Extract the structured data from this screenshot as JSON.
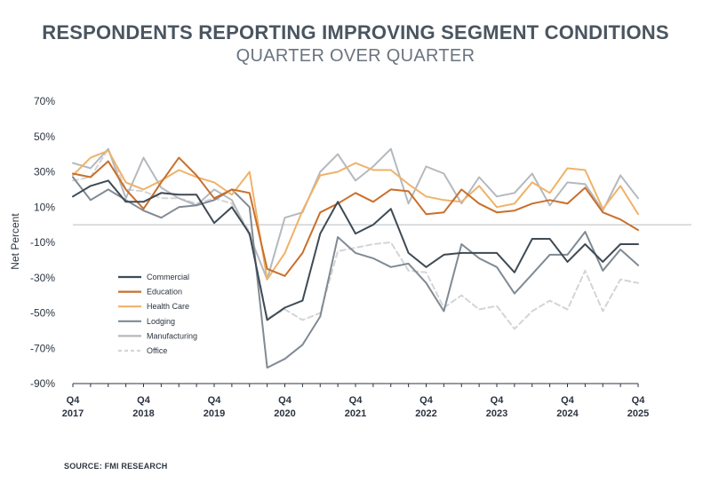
{
  "chart_data": {
    "type": "line",
    "title": "RESPONDENTS REPORTING IMPROVING SEGMENT CONDITIONS",
    "subtitle": "QUARTER OVER QUARTER",
    "ylabel": "Net Percent",
    "xlabel": "",
    "ylim": [
      -90,
      70
    ],
    "yticks": [
      70,
      50,
      30,
      10,
      -10,
      -30,
      -50,
      -70,
      -90
    ],
    "ytick_labels": [
      "70%",
      "50%",
      "30%",
      "10%",
      "-10%",
      "-30%",
      "-50%",
      "-70%",
      "-90%"
    ],
    "x_tick_labels": [
      {
        "q": "Q4",
        "year": "2017"
      },
      {
        "q": "Q4",
        "year": "2018"
      },
      {
        "q": "Q4",
        "year": "2019"
      },
      {
        "q": "Q4",
        "year": "2020"
      },
      {
        "q": "Q4",
        "year": "2021"
      },
      {
        "q": "Q4",
        "year": "2022"
      },
      {
        "q": "Q4",
        "year": "2023"
      },
      {
        "q": "Q4",
        "year": "2024"
      },
      {
        "q": "Q4",
        "year": "2025"
      }
    ],
    "n_points": 33,
    "source": "SOURCE: FMI RESEARCH",
    "series": [
      {
        "name": "Commercial",
        "color": "#3f4a54",
        "dash": "",
        "values": [
          16,
          22,
          25,
          13,
          13,
          18,
          17,
          17,
          1,
          10,
          -5,
          -54,
          -47,
          -43,
          -5,
          13,
          -5,
          0,
          9,
          -16,
          -24,
          -17,
          -16,
          -16,
          -16,
          -27,
          -8,
          -8,
          -21,
          -11,
          -21,
          -11,
          -11
        ]
      },
      {
        "name": "Education",
        "color": "#c96f2c",
        "dash": "",
        "values": [
          29,
          27,
          36,
          20,
          9,
          24,
          38,
          28,
          15,
          20,
          18,
          -25,
          -29,
          -16,
          7,
          12,
          18,
          13,
          20,
          19,
          6,
          7,
          20,
          12,
          7,
          8,
          12,
          14,
          12,
          21,
          7,
          3,
          -3
        ]
      },
      {
        "name": "Health Care",
        "color": "#efb269",
        "dash": "",
        "values": [
          28,
          38,
          42,
          24,
          20,
          25,
          31,
          27,
          24,
          17,
          30,
          -31,
          -16,
          8,
          28,
          30,
          35,
          31,
          31,
          23,
          16,
          14,
          13,
          22,
          10,
          12,
          24,
          18,
          32,
          31,
          9,
          22,
          6
        ]
      },
      {
        "name": "Lodging",
        "color": "#808a93",
        "dash": "",
        "values": [
          27,
          14,
          20,
          14,
          8,
          4,
          10,
          11,
          14,
          20,
          10,
          -81,
          -76,
          -68,
          -52,
          -7,
          -16,
          -19,
          -24,
          -22,
          -33,
          -49,
          -11,
          -19,
          -24,
          -39,
          -28,
          -17,
          -17,
          -4,
          -26,
          -14,
          -23
        ]
      },
      {
        "name": "Manufacturing",
        "color": "#b4b9be",
        "dash": "",
        "values": [
          35,
          32,
          43,
          15,
          38,
          21,
          15,
          11,
          20,
          14,
          -6,
          -31,
          4,
          7,
          30,
          40,
          25,
          33,
          43,
          12,
          33,
          29,
          12,
          27,
          16,
          18,
          29,
          11,
          24,
          23,
          8,
          28,
          15
        ]
      },
      {
        "name": "Office",
        "color": "#d2d5d8",
        "dash": "6,4",
        "values": [
          25,
          27,
          43,
          20,
          19,
          15,
          15,
          12,
          15,
          12,
          -4,
          -53,
          -48,
          -54,
          -50,
          -15,
          -13,
          -11,
          -10,
          -26,
          -27,
          -47,
          -40,
          -48,
          -46,
          -59,
          -49,
          -43,
          -48,
          -26,
          -49,
          -31,
          -33
        ]
      }
    ]
  }
}
